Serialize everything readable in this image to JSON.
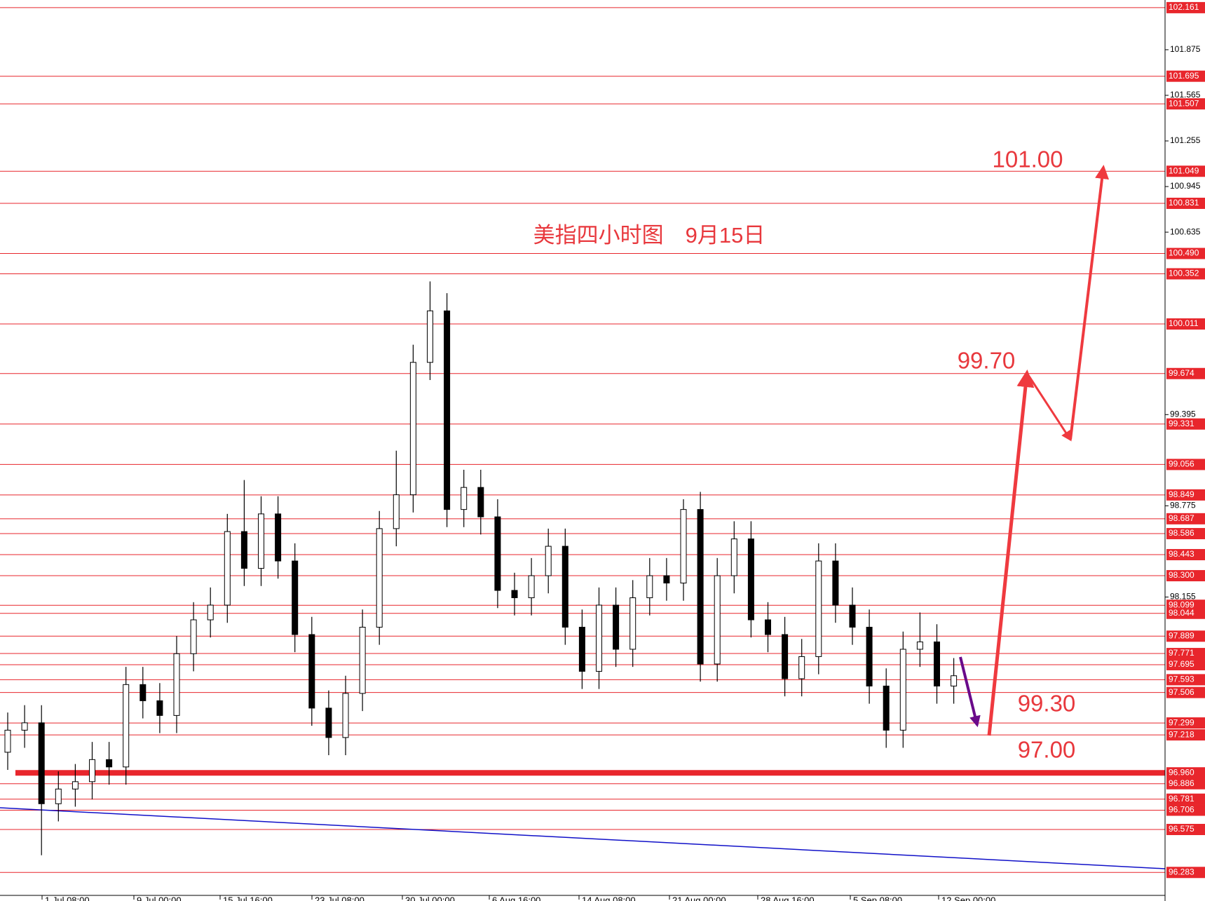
{
  "chart_data": {
    "type": "candlestick",
    "title": "美指四小时图　9月15日",
    "annotations": [
      "101.00",
      "99.70",
      "99.30",
      "97.00"
    ],
    "ylim": [
      96.127,
      102.213
    ],
    "yticks": [
      101.875,
      101.565,
      101.255,
      100.945,
      100.635,
      99.395,
      98.775,
      98.155
    ],
    "levels": [
      102.161,
      101.695,
      101.507,
      101.049,
      100.831,
      {
        "value": 100.49,
        "label": "100.490"
      },
      100.352,
      100.011,
      99.674,
      99.331,
      99.056,
      98.849,
      98.687,
      98.586,
      98.443,
      {
        "value": 98.3,
        "label": "98.300"
      },
      98.099,
      98.044,
      97.889,
      97.771,
      97.695,
      97.593,
      97.506,
      97.299,
      97.218,
      {
        "value": 96.96,
        "label": "96.960",
        "bold": true
      },
      96.886,
      96.781,
      96.706,
      96.575,
      96.283
    ],
    "level_color": "#e8262c",
    "xticks": [
      "1 Jul 08:00",
      "9 Jul 00:00",
      "15 Jul 16:00",
      "23 Jul 08:00",
      "30 Jul 00:00",
      "6 Aug 16:00",
      "14 Aug 08:00",
      "21 Aug 00:00",
      "28 Aug 16:00",
      "5 Sep 08:00",
      "12 Sep 00:00"
    ],
    "open": [
      97.1,
      97.25,
      97.3,
      96.75,
      96.85,
      96.9,
      97.05,
      97.0,
      97.56,
      97.45,
      97.35,
      97.77,
      98.0,
      98.1,
      98.6,
      98.35,
      98.72,
      98.4,
      97.9,
      97.4,
      97.2,
      97.5,
      97.95,
      98.62,
      98.85,
      99.75,
      100.1,
      98.75,
      98.9,
      98.7,
      98.2,
      98.15,
      98.3,
      98.5,
      97.95,
      97.65,
      98.1,
      97.8,
      98.15,
      98.3,
      98.25,
      98.75,
      97.7,
      98.3,
      98.55,
      98.0,
      97.9,
      97.6,
      97.75,
      98.4,
      98.1,
      97.95,
      97.55,
      97.25,
      97.8,
      97.85,
      97.55
    ],
    "high": [
      97.37,
      97.42,
      97.42,
      96.97,
      97.02,
      97.17,
      97.17,
      97.68,
      97.68,
      97.57,
      97.89,
      98.12,
      98.22,
      98.72,
      98.95,
      98.84,
      98.84,
      98.52,
      98.02,
      97.52,
      97.62,
      98.07,
      98.74,
      99.15,
      99.87,
      100.3,
      100.22,
      99.02,
      99.02,
      98.82,
      98.32,
      98.42,
      98.62,
      98.62,
      98.07,
      98.22,
      98.22,
      98.27,
      98.42,
      98.42,
      98.82,
      98.87,
      98.42,
      98.67,
      98.67,
      98.12,
      98.02,
      97.87,
      98.52,
      98.52,
      98.22,
      98.07,
      97.67,
      97.92,
      98.05,
      97.97,
      97.74
    ],
    "low": [
      96.98,
      97.13,
      96.4,
      96.63,
      96.73,
      96.78,
      96.88,
      96.88,
      97.33,
      97.23,
      97.23,
      97.65,
      97.88,
      97.98,
      98.23,
      98.23,
      98.28,
      97.78,
      97.28,
      97.08,
      97.08,
      97.38,
      97.83,
      98.5,
      98.73,
      99.63,
      98.63,
      98.63,
      98.58,
      98.08,
      98.03,
      98.03,
      98.18,
      97.83,
      97.53,
      97.53,
      97.68,
      97.68,
      98.03,
      98.13,
      98.13,
      97.58,
      97.58,
      98.18,
      97.88,
      97.78,
      97.48,
      97.48,
      97.63,
      97.98,
      97.83,
      97.43,
      97.13,
      97.13,
      97.68,
      97.43,
      97.43
    ],
    "close": [
      97.25,
      97.3,
      96.75,
      96.85,
      96.9,
      97.05,
      97.0,
      97.56,
      97.45,
      97.35,
      97.77,
      98.0,
      98.1,
      98.6,
      98.35,
      98.72,
      98.4,
      97.9,
      97.4,
      97.2,
      97.5,
      97.95,
      98.62,
      98.85,
      99.75,
      100.1,
      98.75,
      98.9,
      98.7,
      98.2,
      98.15,
      98.3,
      98.5,
      97.95,
      97.65,
      98.1,
      97.8,
      98.15,
      98.3,
      98.25,
      98.75,
      97.7,
      98.3,
      98.55,
      98.0,
      97.9,
      97.6,
      97.75,
      98.4,
      98.1,
      97.95,
      97.55,
      97.25,
      97.8,
      97.85,
      97.55,
      97.62
    ]
  }
}
